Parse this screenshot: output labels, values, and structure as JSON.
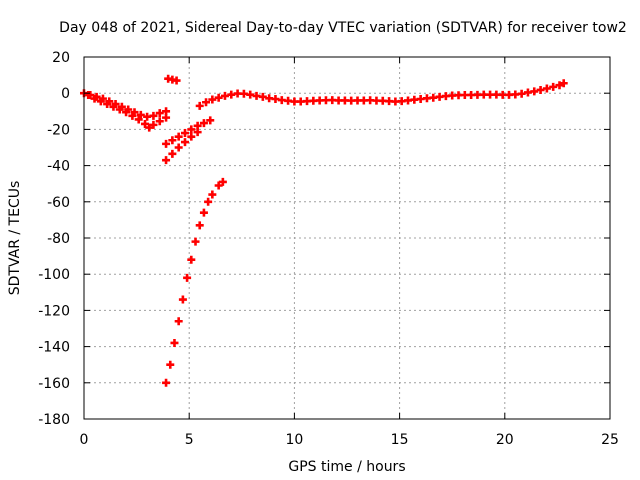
{
  "chart_data": {
    "type": "scatter",
    "title": "Day 048 of 2021, Sidereal Day-to-day VTEC variation (SDTVAR) for receiver tow2",
    "xlabel": "GPS time / hours",
    "ylabel": "SDTVAR / TECUs",
    "xlim": [
      0,
      25
    ],
    "ylim": [
      -180,
      20
    ],
    "xticks": [
      0,
      5,
      10,
      15,
      20,
      25
    ],
    "yticks": [
      20,
      0,
      -20,
      -40,
      -60,
      -80,
      -100,
      -120,
      -140,
      -160,
      -180
    ],
    "grid": true,
    "legend": "none",
    "marker": "plus",
    "color": "#ff0000",
    "series": [
      {
        "points": [
          [
            0.0,
            0.0
          ],
          [
            0.3,
            -1.0
          ],
          [
            0.6,
            -2.0
          ],
          [
            0.9,
            -3.0
          ],
          [
            1.2,
            -4.5
          ],
          [
            1.5,
            -6.0
          ],
          [
            1.8,
            -7.5
          ],
          [
            2.1,
            -9.0
          ],
          [
            2.4,
            -10.5
          ],
          [
            2.7,
            -12.0
          ],
          [
            3.0,
            -13.0
          ],
          [
            3.3,
            -12.5
          ],
          [
            3.6,
            -11.0
          ],
          [
            3.9,
            -10.0
          ],
          [
            0.2,
            -1.0
          ],
          [
            0.5,
            -3.0
          ],
          [
            0.8,
            -4.5
          ],
          [
            1.1,
            -6.0
          ],
          [
            1.4,
            -7.5
          ],
          [
            1.7,
            -9.0
          ],
          [
            2.0,
            -10.5
          ],
          [
            2.3,
            -12.5
          ],
          [
            2.6,
            -14.5
          ],
          [
            2.9,
            -17.0
          ],
          [
            3.1,
            -19.0
          ],
          [
            3.3,
            -17.5
          ],
          [
            3.6,
            -15.5
          ],
          [
            3.9,
            -13.5
          ],
          [
            3.9,
            -28.0
          ],
          [
            4.2,
            -26.0
          ],
          [
            4.5,
            -24.0
          ],
          [
            4.8,
            -22.0
          ],
          [
            5.1,
            -20.0
          ],
          [
            5.4,
            -18.0
          ],
          [
            5.7,
            -16.5
          ],
          [
            6.0,
            -15.0
          ],
          [
            3.9,
            -37.0
          ],
          [
            4.2,
            -33.5
          ],
          [
            4.5,
            -30.0
          ],
          [
            4.8,
            -27.0
          ],
          [
            5.1,
            -24.0
          ],
          [
            5.4,
            -21.5
          ],
          [
            3.9,
            -160.0
          ],
          [
            4.1,
            -150.0
          ],
          [
            4.3,
            -138.0
          ],
          [
            4.5,
            -126.0
          ],
          [
            4.7,
            -114.0
          ],
          [
            4.9,
            -102.0
          ],
          [
            5.1,
            -92.0
          ],
          [
            5.3,
            -82.0
          ],
          [
            5.5,
            -73.0
          ],
          [
            5.7,
            -66.0
          ],
          [
            5.9,
            -60.0
          ],
          [
            6.1,
            -56.0
          ],
          [
            6.4,
            -51.0
          ],
          [
            6.6,
            -49.0
          ],
          [
            4.0,
            8.0
          ],
          [
            4.2,
            7.5
          ],
          [
            4.4,
            7.0
          ],
          [
            5.5,
            -7.0
          ],
          [
            5.8,
            -5.0
          ],
          [
            6.1,
            -3.5
          ],
          [
            6.4,
            -2.5
          ],
          [
            6.7,
            -1.5
          ],
          [
            7.0,
            -0.8
          ],
          [
            7.3,
            -0.2
          ],
          [
            7.6,
            -0.3
          ],
          [
            7.9,
            -0.8
          ],
          [
            8.2,
            -1.5
          ],
          [
            8.5,
            -2.0
          ],
          [
            8.8,
            -2.8
          ],
          [
            9.1,
            -3.2
          ],
          [
            9.4,
            -3.8
          ],
          [
            9.7,
            -4.2
          ],
          [
            10.0,
            -4.6
          ],
          [
            10.3,
            -4.6
          ],
          [
            10.6,
            -4.4
          ],
          [
            10.9,
            -4.2
          ],
          [
            11.2,
            -4.0
          ],
          [
            11.5,
            -3.9
          ],
          [
            11.8,
            -3.8
          ],
          [
            12.1,
            -4.0
          ],
          [
            12.4,
            -4.0
          ],
          [
            12.7,
            -4.1
          ],
          [
            13.0,
            -4.0
          ],
          [
            13.3,
            -4.0
          ],
          [
            13.6,
            -3.9
          ],
          [
            13.9,
            -4.1
          ],
          [
            14.2,
            -4.2
          ],
          [
            14.5,
            -4.4
          ],
          [
            14.8,
            -4.6
          ],
          [
            15.1,
            -4.4
          ],
          [
            15.4,
            -4.0
          ],
          [
            15.7,
            -3.6
          ],
          [
            16.0,
            -3.2
          ],
          [
            16.3,
            -2.8
          ],
          [
            16.6,
            -2.5
          ],
          [
            16.9,
            -2.0
          ],
          [
            17.2,
            -1.6
          ],
          [
            17.5,
            -1.3
          ],
          [
            17.8,
            -1.1
          ],
          [
            18.1,
            -1.0
          ],
          [
            18.4,
            -1.0
          ],
          [
            18.7,
            -0.9
          ],
          [
            19.0,
            -0.8
          ],
          [
            19.3,
            -0.8
          ],
          [
            19.6,
            -0.8
          ],
          [
            19.9,
            -0.9
          ],
          [
            20.2,
            -0.9
          ],
          [
            20.5,
            -0.7
          ],
          [
            20.8,
            -0.3
          ],
          [
            21.1,
            0.4
          ],
          [
            21.4,
            1.0
          ],
          [
            21.7,
            1.8
          ],
          [
            22.0,
            2.6
          ],
          [
            22.3,
            3.5
          ],
          [
            22.6,
            4.4
          ],
          [
            22.8,
            5.5
          ]
        ]
      }
    ]
  }
}
